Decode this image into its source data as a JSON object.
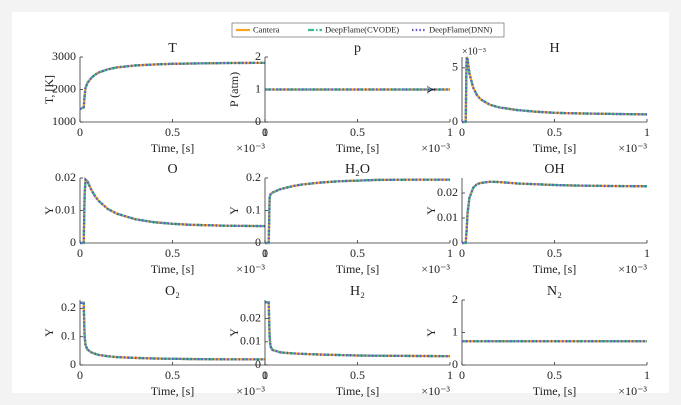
{
  "chart_data": [
    {
      "type": "line",
      "title": "T",
      "xlabel": "Time, [s]",
      "ylabel": "T, [K]",
      "x_multiplier": "×10⁻³",
      "x": [
        0,
        0.02,
        0.025,
        0.03,
        0.04,
        0.06,
        0.08,
        0.1,
        0.15,
        0.2,
        0.3,
        0.4,
        0.5,
        0.6,
        0.8,
        1
      ],
      "xlim": [
        0,
        1
      ],
      "xticks": [
        0,
        0.5,
        1
      ],
      "ylim": [
        1000,
        3000
      ],
      "yticks": [
        1000,
        2000,
        3000
      ],
      "series": [
        {
          "name": "Cantera",
          "color": "#f5a623",
          "style": "solid",
          "values": [
            1400,
            1450,
            1800,
            2050,
            2200,
            2350,
            2450,
            2520,
            2620,
            2680,
            2740,
            2770,
            2790,
            2800,
            2815,
            2820
          ]
        },
        {
          "name": "DeepFlame(CVODE)",
          "color": "#3cb88a",
          "style": "dashdot",
          "values": [
            1400,
            1450,
            1800,
            2050,
            2200,
            2350,
            2450,
            2520,
            2620,
            2680,
            2740,
            2770,
            2790,
            2800,
            2815,
            2820
          ]
        },
        {
          "name": "DeepFlame(DNN)",
          "color": "#6a4fc4",
          "style": "dotted",
          "values": [
            1400,
            1450,
            1800,
            2050,
            2200,
            2350,
            2450,
            2520,
            2620,
            2680,
            2740,
            2770,
            2790,
            2800,
            2815,
            2820
          ]
        }
      ]
    },
    {
      "type": "line",
      "title": "p",
      "xlabel": "Time, [s]",
      "ylabel": "P (atm)",
      "x_multiplier": "×10⁻³",
      "x": [
        0,
        0.02,
        0.025,
        0.03,
        0.04,
        0.06,
        0.08,
        0.1,
        0.15,
        0.2,
        0.3,
        0.4,
        0.5,
        0.6,
        0.8,
        1
      ],
      "xlim": [
        0,
        1
      ],
      "xticks": [
        0,
        0.5,
        1
      ],
      "ylim": [
        0,
        2
      ],
      "yticks": [
        0,
        1,
        2
      ],
      "series": [
        {
          "color": "#f5a623",
          "style": "solid",
          "values": [
            1,
            1,
            1,
            1,
            1,
            1,
            1,
            1,
            1,
            1,
            1,
            1,
            1,
            1,
            1,
            1
          ]
        },
        {
          "color": "#3cb88a",
          "style": "dashdot",
          "values": [
            1,
            1,
            1,
            1,
            1,
            1,
            1,
            1,
            1,
            1,
            1,
            1,
            1,
            1,
            1,
            1
          ]
        },
        {
          "color": "#6a4fc4",
          "style": "dotted",
          "values": [
            1,
            1,
            1,
            1,
            1,
            1,
            1,
            1,
            1,
            1,
            1,
            1,
            1,
            1,
            1,
            1
          ]
        }
      ]
    },
    {
      "type": "line",
      "title": "H",
      "xlabel": "Time, [s]",
      "ylabel": "Y",
      "x_multiplier": "×10⁻³",
      "y_multiplier": "×10⁻³",
      "x": [
        0,
        0.02,
        0.025,
        0.03,
        0.04,
        0.06,
        0.08,
        0.1,
        0.15,
        0.2,
        0.3,
        0.4,
        0.5,
        0.6,
        0.8,
        1
      ],
      "xlim": [
        0,
        1
      ],
      "xticks": [
        0,
        0.5,
        1
      ],
      "ylim": [
        0,
        6
      ],
      "yticks": [
        0,
        5
      ],
      "series": [
        {
          "color": "#f5a623",
          "style": "solid",
          "values": [
            0,
            0,
            6,
            5.8,
            4.5,
            3.2,
            2.5,
            2.1,
            1.6,
            1.35,
            1.1,
            0.95,
            0.85,
            0.8,
            0.75,
            0.7
          ]
        },
        {
          "color": "#3cb88a",
          "style": "dashdot",
          "values": [
            0,
            0,
            6,
            5.8,
            4.5,
            3.2,
            2.5,
            2.1,
            1.6,
            1.35,
            1.1,
            0.95,
            0.85,
            0.8,
            0.75,
            0.7
          ]
        },
        {
          "color": "#6a4fc4",
          "style": "dotted",
          "values": [
            0,
            0,
            6,
            5.8,
            4.5,
            3.2,
            2.5,
            2.1,
            1.6,
            1.35,
            1.1,
            0.95,
            0.85,
            0.8,
            0.75,
            0.7
          ]
        }
      ]
    },
    {
      "type": "line",
      "title": "O",
      "xlabel": "Time, [s]",
      "ylabel": "Y",
      "x_multiplier": "×10⁻³",
      "x": [
        0,
        0.02,
        0.025,
        0.03,
        0.04,
        0.06,
        0.08,
        0.1,
        0.15,
        0.2,
        0.3,
        0.4,
        0.5,
        0.6,
        0.8,
        1
      ],
      "xlim": [
        0,
        1
      ],
      "xticks": [
        0,
        0.5,
        1
      ],
      "ylim": [
        0,
        0.02
      ],
      "yticks": [
        0,
        0.01,
        0.02
      ],
      "series": [
        {
          "color": "#f5a623",
          "style": "solid",
          "values": [
            0,
            0,
            0.015,
            0.0195,
            0.019,
            0.0165,
            0.0145,
            0.013,
            0.0105,
            0.009,
            0.0073,
            0.0064,
            0.0059,
            0.0056,
            0.0053,
            0.0052
          ]
        },
        {
          "color": "#3cb88a",
          "style": "dashdot",
          "values": [
            0,
            0,
            0.015,
            0.0195,
            0.019,
            0.0165,
            0.0145,
            0.013,
            0.0105,
            0.009,
            0.0073,
            0.0064,
            0.0059,
            0.0056,
            0.0053,
            0.0052
          ]
        },
        {
          "color": "#6a4fc4",
          "style": "dotted",
          "values": [
            0,
            0,
            0.015,
            0.0195,
            0.019,
            0.0165,
            0.0145,
            0.013,
            0.0105,
            0.009,
            0.0073,
            0.0064,
            0.0059,
            0.0056,
            0.0053,
            0.0052
          ]
        }
      ]
    },
    {
      "type": "line",
      "title": "H₂O",
      "xlabel": "Time, [s]",
      "ylabel": "Y",
      "x_multiplier": "×10⁻³",
      "x": [
        0,
        0.02,
        0.025,
        0.03,
        0.04,
        0.06,
        0.08,
        0.1,
        0.15,
        0.2,
        0.3,
        0.4,
        0.5,
        0.6,
        0.8,
        1
      ],
      "xlim": [
        0,
        1
      ],
      "xticks": [
        0,
        0.5,
        1
      ],
      "ylim": [
        0,
        0.2
      ],
      "yticks": [
        0,
        0.1,
        0.2
      ],
      "series": [
        {
          "color": "#f5a623",
          "style": "solid",
          "values": [
            0,
            0,
            0.14,
            0.15,
            0.155,
            0.16,
            0.165,
            0.168,
            0.175,
            0.18,
            0.186,
            0.19,
            0.192,
            0.194,
            0.195,
            0.195
          ]
        },
        {
          "color": "#3cb88a",
          "style": "dashdot",
          "values": [
            0,
            0,
            0.14,
            0.15,
            0.155,
            0.16,
            0.165,
            0.168,
            0.175,
            0.18,
            0.186,
            0.19,
            0.192,
            0.194,
            0.195,
            0.195
          ]
        },
        {
          "color": "#6a4fc4",
          "style": "dotted",
          "values": [
            0,
            0,
            0.14,
            0.15,
            0.155,
            0.16,
            0.165,
            0.168,
            0.175,
            0.18,
            0.186,
            0.19,
            0.192,
            0.194,
            0.195,
            0.195
          ]
        }
      ]
    },
    {
      "type": "line",
      "title": "OH",
      "xlabel": "Time, [s]",
      "ylabel": "Y",
      "x_multiplier": "×10⁻³",
      "x": [
        0,
        0.02,
        0.025,
        0.03,
        0.04,
        0.06,
        0.08,
        0.1,
        0.15,
        0.2,
        0.3,
        0.4,
        0.5,
        0.6,
        0.8,
        1
      ],
      "xlim": [
        0,
        1
      ],
      "xticks": [
        0,
        0.5,
        1
      ],
      "ylim": [
        0,
        0.026
      ],
      "yticks": [
        0,
        0.01,
        0.02
      ],
      "series": [
        {
          "color": "#f5a623",
          "style": "solid",
          "values": [
            0,
            0,
            0.005,
            0.012,
            0.018,
            0.022,
            0.0235,
            0.024,
            0.0245,
            0.0244,
            0.0238,
            0.0235,
            0.0232,
            0.023,
            0.0228,
            0.0227
          ]
        },
        {
          "color": "#3cb88a",
          "style": "dashdot",
          "values": [
            0,
            0,
            0.005,
            0.012,
            0.018,
            0.022,
            0.0235,
            0.024,
            0.0245,
            0.0244,
            0.0238,
            0.0235,
            0.0232,
            0.023,
            0.0228,
            0.0227
          ]
        },
        {
          "color": "#6a4fc4",
          "style": "dotted",
          "values": [
            0,
            0,
            0.005,
            0.012,
            0.018,
            0.022,
            0.0235,
            0.024,
            0.0245,
            0.0244,
            0.0238,
            0.0235,
            0.0232,
            0.023,
            0.0228,
            0.0227
          ]
        }
      ]
    },
    {
      "type": "line",
      "title": "O₂",
      "xlabel": "Time, [s]",
      "ylabel": "Y",
      "x_multiplier": "×10⁻³",
      "x": [
        0,
        0.02,
        0.025,
        0.03,
        0.04,
        0.06,
        0.08,
        0.1,
        0.15,
        0.2,
        0.3,
        0.4,
        0.5,
        0.6,
        0.8,
        1
      ],
      "xlim": [
        0,
        1
      ],
      "xticks": [
        0,
        0.5,
        1
      ],
      "ylim": [
        0,
        0.23
      ],
      "yticks": [
        0,
        0.1,
        0.2
      ],
      "series": [
        {
          "color": "#f5a623",
          "style": "solid",
          "values": [
            0.22,
            0.22,
            0.1,
            0.07,
            0.055,
            0.045,
            0.04,
            0.036,
            0.031,
            0.028,
            0.025,
            0.023,
            0.022,
            0.021,
            0.02,
            0.02
          ]
        },
        {
          "color": "#3cb88a",
          "style": "dashdot",
          "values": [
            0.22,
            0.22,
            0.1,
            0.07,
            0.055,
            0.045,
            0.04,
            0.036,
            0.031,
            0.028,
            0.025,
            0.023,
            0.022,
            0.021,
            0.02,
            0.02
          ]
        },
        {
          "color": "#6a4fc4",
          "style": "dotted",
          "values": [
            0.22,
            0.22,
            0.1,
            0.07,
            0.055,
            0.045,
            0.04,
            0.036,
            0.031,
            0.028,
            0.025,
            0.023,
            0.022,
            0.021,
            0.02,
            0.02
          ]
        }
      ]
    },
    {
      "type": "line",
      "title": "H₂",
      "xlabel": "Time, [s]",
      "ylabel": "Y",
      "x_multiplier": "×10⁻³",
      "x": [
        0,
        0.02,
        0.025,
        0.03,
        0.04,
        0.06,
        0.08,
        0.1,
        0.15,
        0.2,
        0.3,
        0.4,
        0.5,
        0.6,
        0.8,
        1
      ],
      "xlim": [
        0,
        1
      ],
      "xticks": [
        0,
        0.5,
        1
      ],
      "ylim": [
        0,
        0.028
      ],
      "yticks": [
        0,
        0.01,
        0.02
      ],
      "series": [
        {
          "color": "#f5a623",
          "style": "solid",
          "values": [
            0.027,
            0.027,
            0.012,
            0.008,
            0.0065,
            0.006,
            0.0055,
            0.0053,
            0.005,
            0.0048,
            0.0045,
            0.0043,
            0.0041,
            0.004,
            0.0039,
            0.0038
          ]
        },
        {
          "color": "#3cb88a",
          "style": "dashdot",
          "values": [
            0.027,
            0.027,
            0.012,
            0.008,
            0.0065,
            0.006,
            0.0055,
            0.0053,
            0.005,
            0.0048,
            0.0045,
            0.0043,
            0.0041,
            0.004,
            0.0039,
            0.0038
          ]
        },
        {
          "color": "#6a4fc4",
          "style": "dotted",
          "values": [
            0.027,
            0.027,
            0.012,
            0.008,
            0.0065,
            0.006,
            0.0055,
            0.0053,
            0.005,
            0.0048,
            0.0045,
            0.0043,
            0.0041,
            0.004,
            0.0039,
            0.0038
          ]
        }
      ]
    },
    {
      "type": "line",
      "title": "N₂",
      "xlabel": "Time, [s]",
      "ylabel": "Y",
      "x_multiplier": "×10⁻³",
      "x": [
        0,
        0.02,
        0.025,
        0.03,
        0.04,
        0.06,
        0.08,
        0.1,
        0.15,
        0.2,
        0.3,
        0.4,
        0.5,
        0.6,
        0.8,
        1
      ],
      "xlim": [
        0,
        1
      ],
      "xticks": [
        0,
        0.5,
        1
      ],
      "ylim": [
        0,
        2
      ],
      "yticks": [
        0,
        1,
        2
      ],
      "series": [
        {
          "color": "#f5a623",
          "style": "solid",
          "values": [
            0.73,
            0.73,
            0.73,
            0.73,
            0.73,
            0.73,
            0.73,
            0.73,
            0.73,
            0.73,
            0.73,
            0.73,
            0.73,
            0.73,
            0.73,
            0.73
          ]
        },
        {
          "color": "#3cb88a",
          "style": "dashdot",
          "values": [
            0.73,
            0.73,
            0.73,
            0.73,
            0.73,
            0.73,
            0.73,
            0.73,
            0.73,
            0.73,
            0.73,
            0.73,
            0.73,
            0.73,
            0.73,
            0.73
          ]
        },
        {
          "color": "#6a4fc4",
          "style": "dotted",
          "values": [
            0.73,
            0.73,
            0.73,
            0.73,
            0.73,
            0.73,
            0.73,
            0.73,
            0.73,
            0.73,
            0.73,
            0.73,
            0.73,
            0.73,
            0.73,
            0.73
          ]
        }
      ]
    }
  ]
}
